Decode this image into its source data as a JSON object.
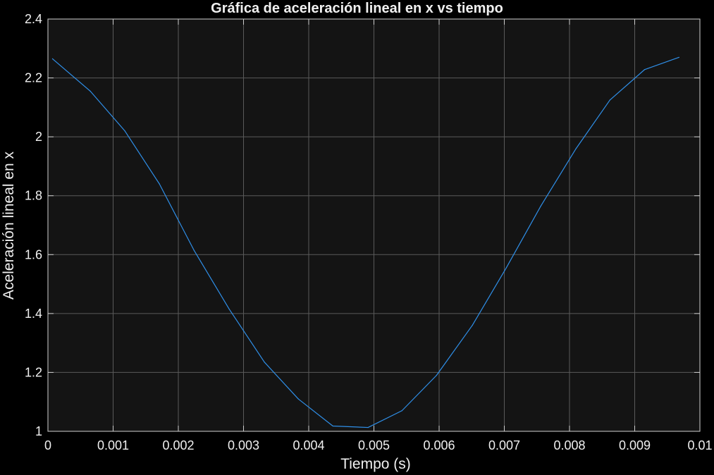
{
  "chart_data": {
    "type": "line",
    "title": "Gráfica de aceleración lineal en x vs tiempo",
    "xlabel": "Tiempo (s)",
    "ylabel": "Aceleración lineal en x",
    "xlim": [
      0,
      0.01
    ],
    "ylim": [
      1,
      2.4
    ],
    "x_ticks": [
      "0",
      "0.001",
      "0.002",
      "0.003",
      "0.004",
      "0.005",
      "0.006",
      "0.007",
      "0.008",
      "0.009",
      "0.01"
    ],
    "y_ticks": [
      "1",
      "1.2",
      "1.4",
      "1.6",
      "1.8",
      "2",
      "2.2",
      "2.4"
    ],
    "grid": true,
    "colors": {
      "background": "#000000",
      "axes_background": "#141414",
      "grid": "#5a5a5a",
      "axis": "#cfcfcf",
      "text": "#f0f0f0",
      "line": "#2f8fe8"
    },
    "series": [
      {
        "x": [
          7e-05,
          0.00065,
          0.00118,
          0.00171,
          0.00224,
          0.00278,
          0.00332,
          0.00384,
          0.00437,
          0.00491,
          0.00543,
          0.00596,
          0.00651,
          0.00703,
          0.00756,
          0.0081,
          0.00862,
          0.00915,
          0.00968
        ],
        "y": [
          2.265,
          2.155,
          2.02,
          1.84,
          1.615,
          1.415,
          1.235,
          1.11,
          1.018,
          1.013,
          1.07,
          1.19,
          1.36,
          1.555,
          1.765,
          1.96,
          2.125,
          2.228,
          2.27
        ]
      }
    ]
  }
}
